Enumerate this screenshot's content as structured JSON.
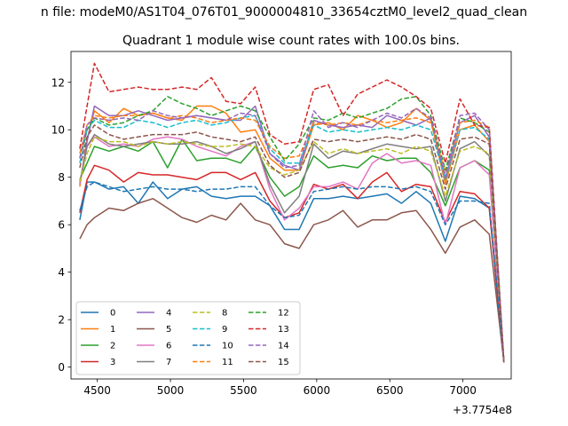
{
  "figure": {
    "suptitle": "n file: modeM0/AS1T04_076T01_9000004810_33654cztM0_level2_quad_clean",
    "offset_text": "+3.7754e8"
  },
  "chart_data": {
    "type": "line",
    "title": "Quadrant 1 module wise count rates with 100.0s bins.",
    "xlabel": "",
    "ylabel": "",
    "x_offset": 377540000,
    "xlim": [
      4320,
      7330
    ],
    "ylim": [
      -0.5,
      13.3
    ],
    "x_ticks": [
      4500,
      5000,
      5500,
      6000,
      6500,
      7000
    ],
    "y_ticks": [
      0,
      2,
      4,
      6,
      8,
      10,
      12
    ],
    "grid": false,
    "legend_position": "lower-left",
    "x": [
      4380,
      4430,
      4480,
      4580,
      4680,
      4780,
      4880,
      4980,
      5080,
      5180,
      5280,
      5380,
      5480,
      5580,
      5680,
      5780,
      5880,
      5980,
      6080,
      6180,
      6280,
      6380,
      6480,
      6580,
      6680,
      6780,
      6880,
      6980,
      7080,
      7180,
      7280
    ],
    "series": [
      {
        "name": "0",
        "color": "#1f77b4",
        "dash": "solid",
        "values": [
          6.2,
          7.8,
          7.8,
          7.5,
          7.6,
          6.9,
          7.8,
          7.1,
          7.5,
          7.6,
          7.2,
          7.1,
          7.2,
          7.2,
          6.8,
          5.8,
          5.8,
          7.1,
          7.1,
          7.2,
          7.1,
          7.2,
          7.3,
          6.9,
          7.4,
          6.9,
          5.3,
          7.2,
          7.1,
          6.7,
          0.2
        ]
      },
      {
        "name": "1",
        "color": "#ff7f0e",
        "dash": "solid",
        "values": [
          7.6,
          9.6,
          10.8,
          10.3,
          10.9,
          10.6,
          10.7,
          10.5,
          10.4,
          11.0,
          11.0,
          10.7,
          9.9,
          10.0,
          8.8,
          8.3,
          8.3,
          10.2,
          10.3,
          10.0,
          10.6,
          10.4,
          10.1,
          10.3,
          10.9,
          10.4,
          7.7,
          10.0,
          10.2,
          9.5,
          0.2
        ]
      },
      {
        "name": "2",
        "color": "#2ca02c",
        "dash": "solid",
        "values": [
          7.9,
          8.6,
          9.3,
          9.1,
          9.3,
          9.1,
          9.5,
          8.4,
          9.6,
          8.7,
          8.8,
          8.8,
          8.6,
          9.3,
          8.0,
          7.2,
          7.6,
          8.9,
          8.4,
          8.5,
          8.4,
          8.9,
          8.7,
          8.8,
          8.8,
          8.2,
          6.8,
          8.4,
          8.7,
          8.3,
          0.2
        ]
      },
      {
        "name": "3",
        "color": "#d62728",
        "dash": "solid",
        "values": [
          6.5,
          7.9,
          8.5,
          8.3,
          7.8,
          8.2,
          8.1,
          8.1,
          8.0,
          7.9,
          8.2,
          8.2,
          7.9,
          8.2,
          7.0,
          6.3,
          6.5,
          7.7,
          7.5,
          7.7,
          7.1,
          7.8,
          8.2,
          7.4,
          7.7,
          7.6,
          6.1,
          7.4,
          7.3,
          6.7,
          0.2
        ]
      },
      {
        "name": "4",
        "color": "#9467bd",
        "dash": "solid",
        "values": [
          7.7,
          9.5,
          11.0,
          10.6,
          10.6,
          10.8,
          10.6,
          10.4,
          10.5,
          10.6,
          10.5,
          10.4,
          10.4,
          11.0,
          9.0,
          8.5,
          8.3,
          10.4,
          10.2,
          10.1,
          10.2,
          10.1,
          10.6,
          10.4,
          10.2,
          10.5,
          7.9,
          10.3,
          10.6,
          9.7,
          0.2
        ]
      },
      {
        "name": "5",
        "color": "#8c564b",
        "dash": "solid",
        "values": [
          5.4,
          6.0,
          6.3,
          6.7,
          6.6,
          6.9,
          7.1,
          6.7,
          6.3,
          6.1,
          6.4,
          6.2,
          6.9,
          6.2,
          6.0,
          5.2,
          5.0,
          6.0,
          6.2,
          6.6,
          5.9,
          6.2,
          6.2,
          6.5,
          6.6,
          5.8,
          4.8,
          5.9,
          6.2,
          5.6,
          0.2
        ]
      },
      {
        "name": "6",
        "color": "#e377c2",
        "dash": "solid",
        "values": [
          7.7,
          9.3,
          9.7,
          9.3,
          9.4,
          9.3,
          9.6,
          9.7,
          9.6,
          9.3,
          9.1,
          8.9,
          9.3,
          9.5,
          7.5,
          6.2,
          6.7,
          7.6,
          7.6,
          7.8,
          7.5,
          8.6,
          9.0,
          8.6,
          8.7,
          8.5,
          6.0,
          8.4,
          8.7,
          8.1,
          0.2
        ]
      },
      {
        "name": "7",
        "color": "#7f7f7f",
        "dash": "solid",
        "values": [
          7.8,
          9.3,
          9.8,
          9.4,
          9.3,
          9.4,
          9.5,
          9.4,
          9.4,
          9.5,
          9.3,
          9.0,
          9.2,
          9.5,
          7.7,
          6.5,
          7.2,
          9.4,
          8.8,
          9.1,
          9.0,
          9.2,
          9.4,
          9.3,
          9.2,
          9.3,
          7.0,
          9.2,
          9.5,
          8.9,
          0.2
        ]
      },
      {
        "name": "8",
        "color": "#bcbd22",
        "dash": "dashed",
        "values": [
          7.8,
          9.0,
          9.7,
          9.5,
          9.5,
          9.3,
          9.5,
          9.4,
          9.5,
          9.4,
          9.3,
          9.3,
          9.4,
          9.3,
          8.4,
          8.1,
          8.3,
          9.5,
          9.0,
          9.2,
          9.0,
          9.1,
          9.2,
          9.0,
          9.3,
          9.1,
          7.2,
          9.1,
          9.3,
          9.0,
          0.2
        ]
      },
      {
        "name": "9",
        "color": "#17becf",
        "dash": "dashed",
        "values": [
          8.6,
          10.0,
          10.4,
          10.1,
          10.1,
          10.4,
          10.3,
          10.1,
          10.3,
          10.4,
          10.2,
          10.3,
          10.5,
          10.6,
          9.2,
          8.6,
          8.6,
          10.2,
          9.9,
          10.0,
          9.9,
          10.0,
          10.1,
          10.0,
          10.2,
          10.0,
          7.9,
          10.0,
          10.1,
          9.6,
          0.2
        ]
      },
      {
        "name": "10",
        "color": "#1f77b4",
        "dash": "dashed",
        "values": [
          6.6,
          7.6,
          7.8,
          7.6,
          7.4,
          7.5,
          7.6,
          7.5,
          7.5,
          7.4,
          7.5,
          7.5,
          7.6,
          7.6,
          6.8,
          6.3,
          6.4,
          7.4,
          7.5,
          7.6,
          7.5,
          7.6,
          7.6,
          7.5,
          7.6,
          7.4,
          6.0,
          7.0,
          7.0,
          6.9,
          0.2
        ]
      },
      {
        "name": "11",
        "color": "#ff7f0e",
        "dash": "dashed",
        "values": [
          9.0,
          10.2,
          10.6,
          10.5,
          10.6,
          10.6,
          10.7,
          10.5,
          10.6,
          10.5,
          10.3,
          10.4,
          10.5,
          10.4,
          9.3,
          8.8,
          8.9,
          10.3,
          10.2,
          10.3,
          10.2,
          10.4,
          10.3,
          10.4,
          10.5,
          10.3,
          8.2,
          10.3,
          10.4,
          10.1,
          0.2
        ]
      },
      {
        "name": "12",
        "color": "#2ca02c",
        "dash": "dashed",
        "values": [
          8.8,
          10.0,
          10.5,
          10.2,
          10.3,
          10.6,
          10.8,
          11.4,
          11.1,
          10.9,
          10.6,
          10.8,
          11.0,
          10.8,
          9.7,
          8.7,
          9.4,
          10.5,
          10.4,
          10.7,
          10.5,
          10.7,
          10.9,
          11.3,
          11.4,
          10.6,
          8.3,
          10.5,
          10.3,
          9.9,
          0.2
        ]
      },
      {
        "name": "13",
        "color": "#d62728",
        "dash": "dashed",
        "values": [
          9.2,
          11.0,
          12.8,
          11.6,
          11.7,
          11.8,
          11.7,
          11.7,
          11.8,
          11.7,
          12.2,
          11.2,
          11.1,
          11.8,
          9.8,
          9.4,
          9.5,
          11.7,
          11.9,
          10.6,
          11.5,
          11.8,
          12.1,
          11.8,
          11.4,
          10.9,
          8.6,
          11.3,
          10.2,
          10.1,
          0.2
        ]
      },
      {
        "name": "14",
        "color": "#9467bd",
        "dash": "dashed",
        "values": [
          8.8,
          10.2,
          10.5,
          10.4,
          10.5,
          10.4,
          10.8,
          10.6,
          10.5,
          10.6,
          10.5,
          10.4,
          10.7,
          10.6,
          9.0,
          8.4,
          8.5,
          10.8,
          10.1,
          10.3,
          10.1,
          10.4,
          10.7,
          10.5,
          10.9,
          10.5,
          8.0,
          10.6,
          10.7,
          10.0,
          0.2
        ]
      },
      {
        "name": "15",
        "color": "#8c564b",
        "dash": "dashed",
        "values": [
          8.4,
          9.7,
          10.2,
          9.8,
          9.6,
          9.7,
          9.8,
          9.8,
          9.8,
          9.9,
          9.7,
          9.6,
          9.5,
          9.7,
          8.5,
          8.0,
          8.2,
          9.6,
          9.5,
          9.6,
          9.5,
          9.6,
          9.7,
          9.6,
          9.8,
          9.6,
          7.5,
          9.6,
          9.7,
          9.4,
          0.2
        ]
      }
    ]
  }
}
